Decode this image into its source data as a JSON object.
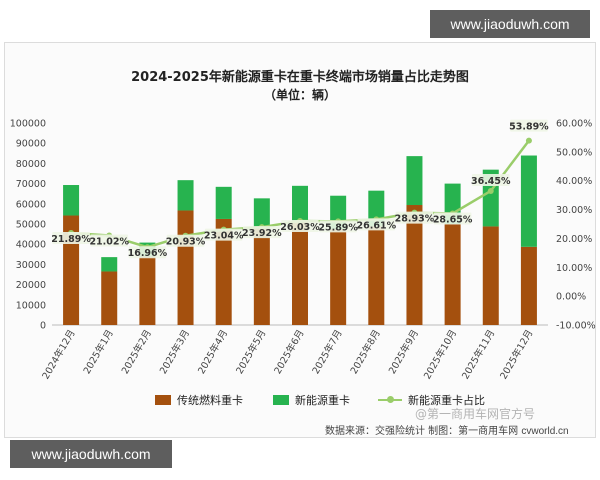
{
  "watermarks": {
    "top": "www.jiaoduwh.com",
    "bottom": "www.jiaoduwh.com",
    "wechat": "@第一商用车网官方号"
  },
  "source": {
    "text": "数据来源：交强险统计 制图：第一商用车网",
    "brand": "cvworld.cn"
  },
  "colors": {
    "traditional": "#a4500e",
    "new_energy": "#27b34f",
    "share_line": "#9acd6a"
  },
  "chart_data": {
    "type": "bar",
    "title": "2024-2025年新能源重卡在重卡终端市场销量占比走势图",
    "subtitle": "（单位：辆）",
    "categories": [
      "2024年12月",
      "2025年1月",
      "2025年2月",
      "2025年3月",
      "2025年4月",
      "2025年5月",
      "2025年6月",
      "2025年7月",
      "2025年8月",
      "2025年9月",
      "2025年10月",
      "2025年11月",
      "2025年12月"
    ],
    "stacked": true,
    "series": [
      {
        "name": "传统燃料重卡",
        "type": "bar",
        "axis": "left",
        "values": [
          54200,
          26500,
          33900,
          56700,
          52500,
          47800,
          51000,
          47500,
          48800,
          59400,
          50000,
          48800,
          38700
        ]
      },
      {
        "name": "新能源重卡",
        "type": "bar",
        "axis": "left",
        "values": [
          15100,
          7100,
          6900,
          15000,
          15900,
          14900,
          17900,
          16500,
          17700,
          24200,
          20000,
          28100,
          45200
        ]
      },
      {
        "name": "新能源重卡占比",
        "type": "line",
        "axis": "right",
        "values": [
          21.89,
          21.02,
          16.96,
          20.93,
          23.04,
          23.92,
          26.03,
          25.89,
          26.61,
          28.93,
          28.65,
          36.45,
          53.89
        ]
      }
    ],
    "data_labels": [
      "21.89%",
      "21.02%",
      "16.96%",
      "20.93%",
      "23.04%",
      "23.92%",
      "26.03%",
      "25.89%",
      "26.61%",
      "28.93%",
      "28.65%",
      "36.45%",
      "53.89%"
    ],
    "y_left": {
      "min": 0,
      "max": 100000,
      "step": 10000,
      "ticks": [
        "0",
        "10000",
        "20000",
        "30000",
        "40000",
        "50000",
        "60000",
        "70000",
        "80000",
        "90000",
        "100000"
      ]
    },
    "y_right": {
      "min": -10,
      "max": 60,
      "step": 10,
      "ticks": [
        "-10.00%",
        "0.00%",
        "10.00%",
        "20.00%",
        "30.00%",
        "40.00%",
        "50.00%",
        "60.00%"
      ]
    },
    "grid": false,
    "legend_position": "bottom"
  }
}
